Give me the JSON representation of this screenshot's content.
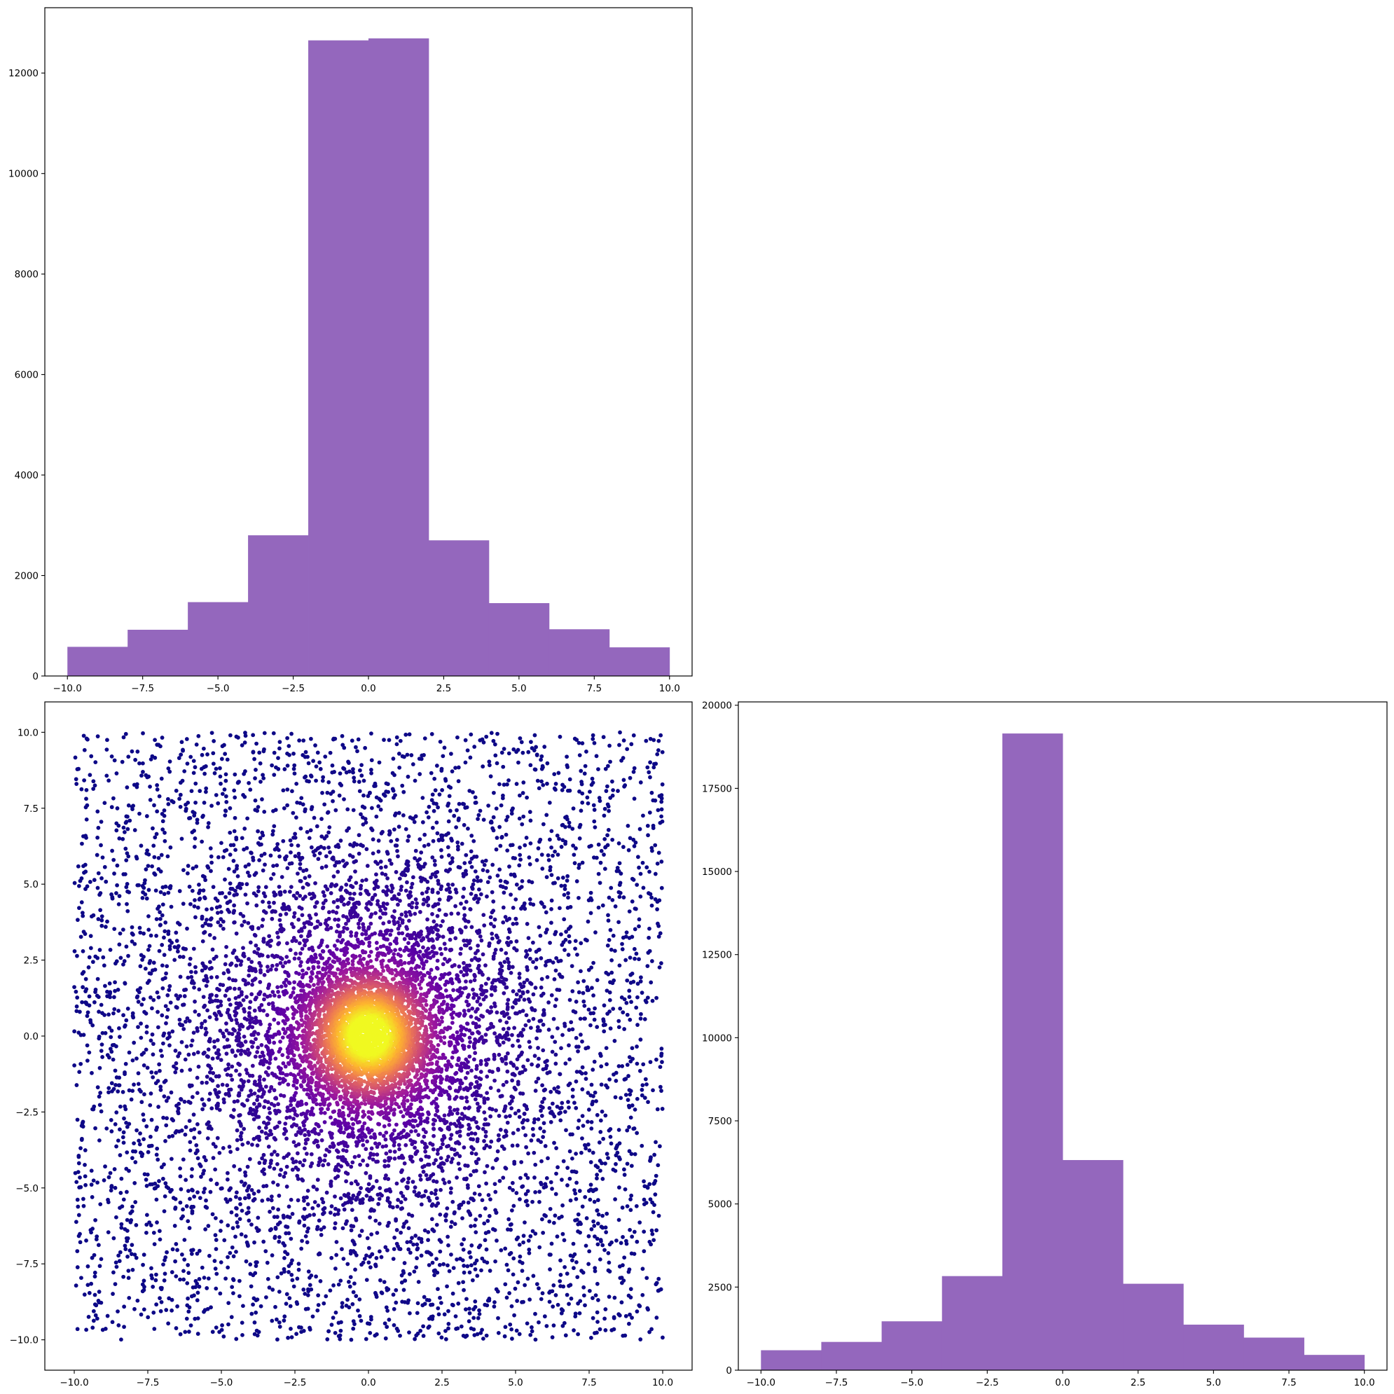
{
  "chart_data": [
    {
      "panel": "top-left",
      "type": "bar",
      "title": "",
      "xlabel": "",
      "ylabel": "",
      "bin_edges": [
        -10,
        -8,
        -6,
        -4,
        -2,
        0,
        2,
        4,
        6,
        8,
        10
      ],
      "values": [
        580,
        920,
        1470,
        2800,
        12650,
        12690,
        2700,
        1450,
        930,
        570
      ],
      "xlim": [
        -10.75,
        10.75
      ],
      "ylim": [
        0,
        13300
      ],
      "xticks": [
        -10,
        -7.5,
        -5,
        -2.5,
        0,
        2.5,
        5,
        7.5,
        10
      ],
      "xtick_labels": [
        "−10.0",
        "−7.5",
        "−5.0",
        "−2.5",
        "0.0",
        "2.5",
        "5.0",
        "7.5",
        "10.0"
      ],
      "yticks": [
        0,
        2000,
        4000,
        6000,
        8000,
        10000,
        12000
      ],
      "ytick_labels": [
        "0",
        "2000",
        "4000",
        "6000",
        "8000",
        "10000",
        "12000"
      ],
      "color": "#9467bd",
      "grid": false,
      "legend": "none"
    },
    {
      "panel": "bottom-left",
      "type": "scatter",
      "title": "",
      "xlabel": "",
      "ylabel": "",
      "x_range": [
        -10,
        10
      ],
      "y_range": [
        -10,
        10
      ],
      "xlim": [
        -11,
        11
      ],
      "ylim": [
        -11,
        11
      ],
      "approx_points": 10000,
      "distribution": "uniform square plus dense radial cluster centered at (0, 0)",
      "colormap": "plasma",
      "colormap_stops": [
        "#0d0887",
        "#5c01a6",
        "#9c179e",
        "#cc4778",
        "#ed7953",
        "#fdb42f",
        "#f0f921"
      ],
      "color_encodes": "density, highest at center (0, 0)",
      "xticks": [
        -10,
        -7.5,
        -5,
        -2.5,
        0,
        2.5,
        5,
        7.5,
        10
      ],
      "xtick_labels": [
        "−10.0",
        "−7.5",
        "−5.0",
        "−2.5",
        "0.0",
        "2.5",
        "5.0",
        "7.5",
        "10.0"
      ],
      "yticks": [
        -10,
        -7.5,
        -5,
        -2.5,
        0,
        2.5,
        5,
        7.5,
        10
      ],
      "ytick_labels": [
        "−10.0",
        "−7.5",
        "−5.0",
        "−2.5",
        "0.0",
        "2.5",
        "5.0",
        "7.5",
        "10.0"
      ],
      "grid": false,
      "legend": "none"
    },
    {
      "panel": "bottom-right",
      "type": "bar",
      "title": "",
      "xlabel": "",
      "ylabel": "",
      "bin_edges": [
        -10,
        -8,
        -6,
        -4,
        -2,
        0,
        2,
        4,
        6,
        8,
        10
      ],
      "values": [
        600,
        850,
        1470,
        2830,
        19150,
        6320,
        2600,
        1370,
        980,
        460
      ],
      "xlim": [
        -10.75,
        10.75
      ],
      "ylim": [
        0,
        20100
      ],
      "xticks": [
        -10,
        -7.5,
        -5,
        -2.5,
        0,
        2.5,
        5,
        7.5,
        10
      ],
      "xtick_labels": [
        "−10.0",
        "−7.5",
        "−5.0",
        "−2.5",
        "0.0",
        "2.5",
        "5.0",
        "7.5",
        "10.0"
      ],
      "yticks": [
        0,
        2500,
        5000,
        7500,
        10000,
        12500,
        15000,
        17500,
        20000
      ],
      "ytick_labels": [
        "0",
        "2500",
        "5000",
        "7500",
        "10000",
        "12500",
        "15000",
        "17500",
        "20000"
      ],
      "color": "#9467bd",
      "grid": false,
      "legend": "none"
    }
  ]
}
